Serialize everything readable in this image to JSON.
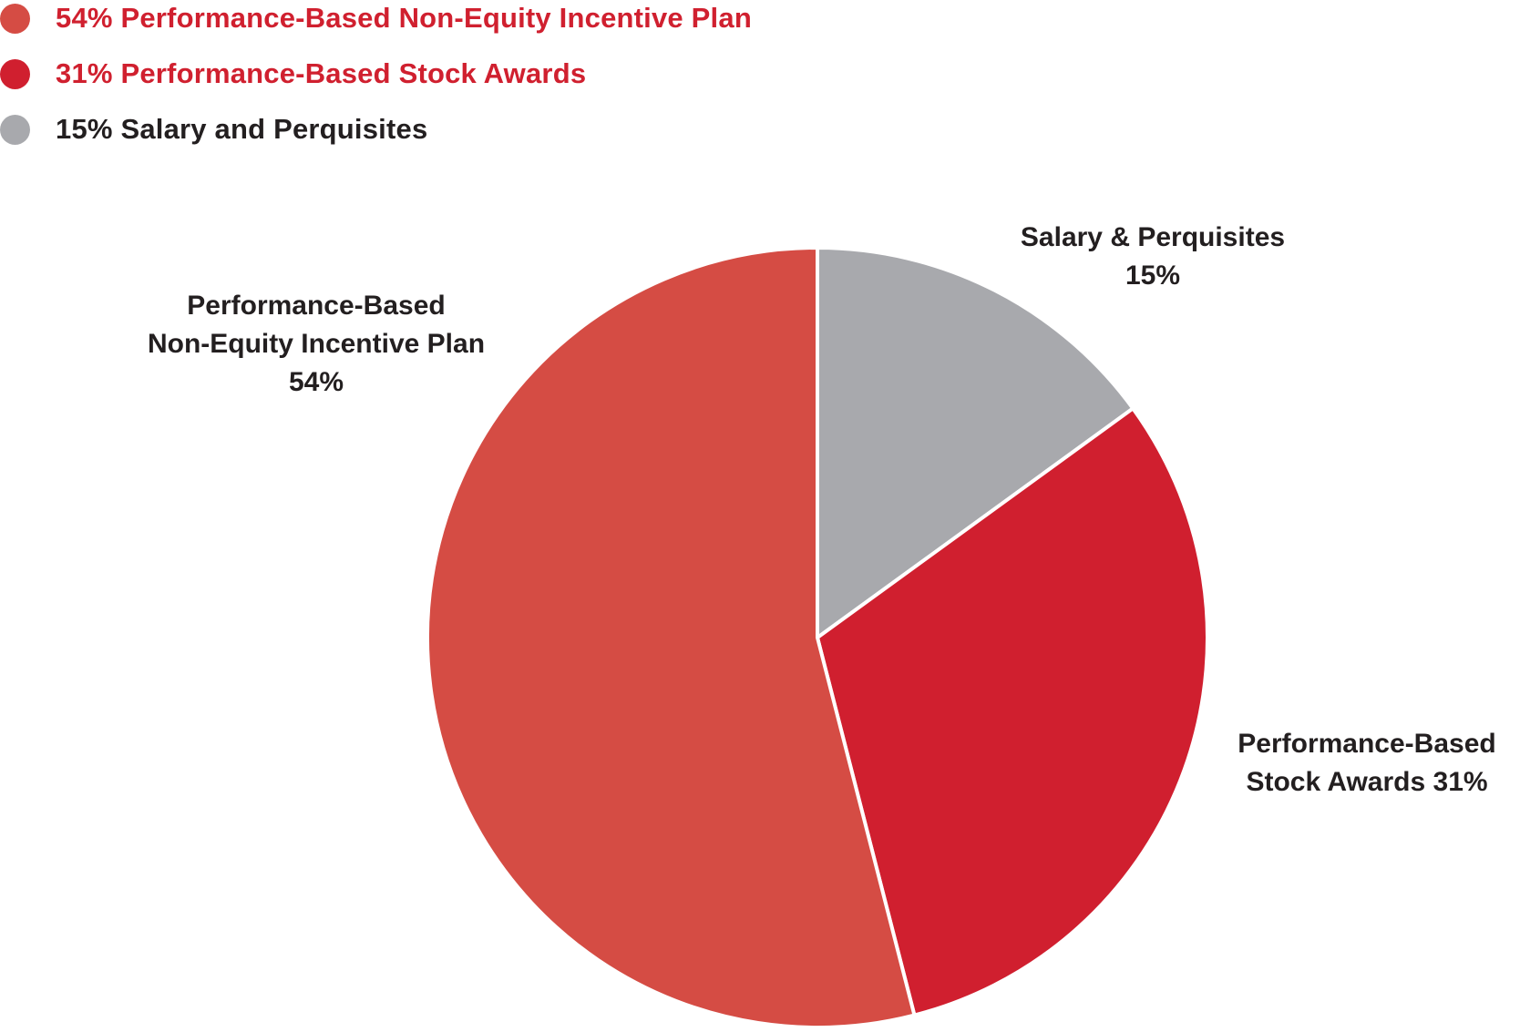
{
  "legend": {
    "items": [
      {
        "label": "54% Performance-Based Non-Equity Incentive Plan",
        "color": "#d54c44",
        "text_color": "#d0202f"
      },
      {
        "label": "31% Performance-Based Stock Awards",
        "color": "#d01f2f",
        "text_color": "#d0202f"
      },
      {
        "label": "15% Salary and Perquisites",
        "color": "#a8a9ad",
        "text_color": "#231f20"
      }
    ]
  },
  "chart_data": {
    "type": "pie",
    "categories": [
      "Salary & Perquisites",
      "Performance-Based Stock Awards",
      "Performance-Based Non-Equity Incentive Plan"
    ],
    "values": [
      15,
      31,
      54
    ],
    "colors": [
      "#a8a9ad",
      "#d01f2f",
      "#d54c44"
    ],
    "slice_labels": [
      [
        "Salary & Perquisites",
        "15%"
      ],
      [
        "Performance-Based",
        "Stock Awards 31%"
      ],
      [
        "Performance-Based",
        "Non-Equity Incentive Plan",
        "54%"
      ]
    ]
  }
}
